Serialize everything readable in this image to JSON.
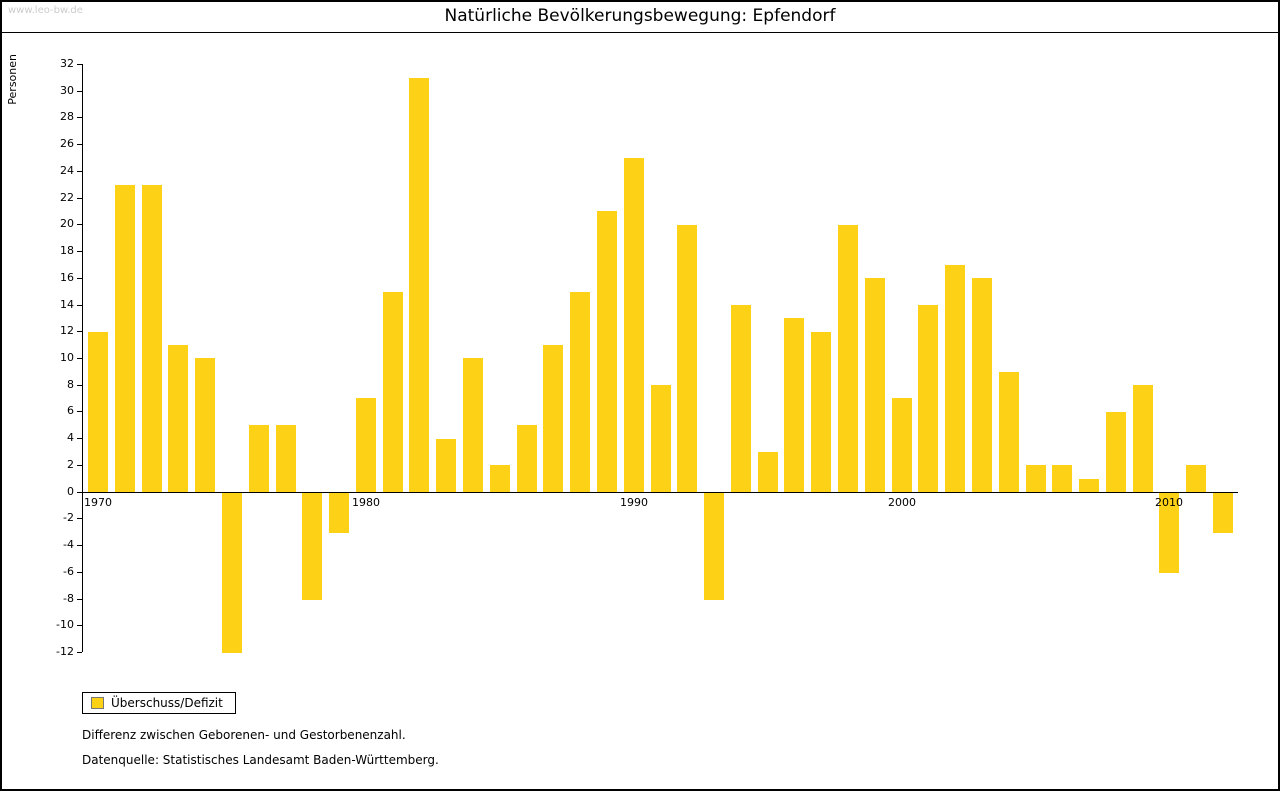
{
  "watermark": "www.leo-bw.de",
  "title": "Natürliche Bevölkerungsbewegung: Epfendorf",
  "footnotes": [
    "Differenz zwischen Geborenen- und Gestorbenenzahl.",
    "Datenquelle: Statistisches Landesamt Baden-Württemberg."
  ],
  "chart_data": {
    "type": "bar",
    "title": "Natürliche Bevölkerungsbewegung: Epfendorf",
    "xlabel": "",
    "ylabel": "Personen",
    "ylim": [
      -12,
      32
    ],
    "ytick_step": 2,
    "grid": false,
    "legend": "Überschuss/Defizit",
    "legend_position": "bottom-left",
    "bar_color": "#FCD116",
    "categories": [
      "1970",
      "1971",
      "1972",
      "1973",
      "1974",
      "1975",
      "1976",
      "1977",
      "1978",
      "1979",
      "1980",
      "1981",
      "1982",
      "1983",
      "1984",
      "1985",
      "1986",
      "1987",
      "1988",
      "1989",
      "1990",
      "1991",
      "1992",
      "1993",
      "1994",
      "1995",
      "1996",
      "1997",
      "1998",
      "1999",
      "2000",
      "2001",
      "2002",
      "2003",
      "2004",
      "2005",
      "2006",
      "2007",
      "2008",
      "2009",
      "2010",
      "2011",
      "2012"
    ],
    "values": [
      12,
      23,
      23,
      11,
      10,
      -12,
      5,
      5,
      -8,
      -3,
      7,
      15,
      31,
      4,
      10,
      2,
      5,
      11,
      15,
      21,
      25,
      8,
      20,
      -8,
      14,
      3,
      13,
      12,
      20,
      16,
      7,
      14,
      17,
      16,
      9,
      2,
      2,
      1,
      6,
      8,
      -6,
      2,
      -3
    ],
    "xticks": [
      1970,
      1980,
      1990,
      2000,
      2010
    ]
  }
}
